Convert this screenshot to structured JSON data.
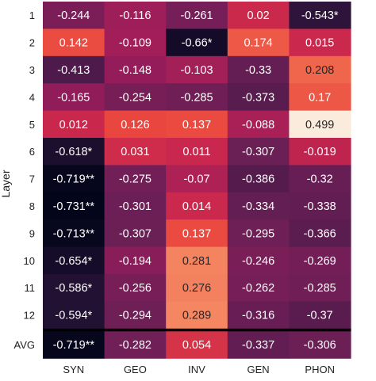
{
  "chart_data": {
    "type": "heatmap",
    "ylabel": "Layer",
    "xlabel": "",
    "columns": [
      "SYN",
      "GEO",
      "INV",
      "GEN",
      "PHON"
    ],
    "rows": [
      "1",
      "2",
      "3",
      "4",
      "5",
      "6",
      "7",
      "8",
      "9",
      "10",
      "11",
      "12",
      "AVG"
    ],
    "values": [
      [
        -0.244,
        -0.116,
        -0.261,
        0.02,
        -0.543
      ],
      [
        0.142,
        -0.109,
        -0.66,
        0.174,
        0.015
      ],
      [
        -0.413,
        -0.148,
        -0.103,
        -0.33,
        0.208
      ],
      [
        -0.165,
        -0.254,
        -0.285,
        -0.373,
        0.17
      ],
      [
        0.012,
        0.126,
        0.137,
        -0.088,
        0.499
      ],
      [
        -0.618,
        0.031,
        0.011,
        -0.307,
        -0.019
      ],
      [
        -0.719,
        -0.275,
        -0.07,
        -0.386,
        -0.32
      ],
      [
        -0.731,
        -0.301,
        0.014,
        -0.334,
        -0.338
      ],
      [
        -0.713,
        -0.307,
        0.137,
        -0.295,
        -0.366
      ],
      [
        -0.654,
        -0.194,
        0.281,
        -0.246,
        -0.269
      ],
      [
        -0.586,
        -0.256,
        0.276,
        -0.262,
        -0.285
      ],
      [
        -0.594,
        -0.294,
        0.289,
        -0.316,
        -0.37
      ],
      [
        -0.719,
        -0.282,
        0.054,
        -0.337,
        -0.306
      ]
    ],
    "labels": [
      [
        "-0.244",
        "-0.116",
        "-0.261",
        "0.02",
        "-0.543*"
      ],
      [
        "0.142",
        "-0.109",
        "-0.66*",
        "0.174",
        "0.015"
      ],
      [
        "-0.413",
        "-0.148",
        "-0.103",
        "-0.33",
        "0.208"
      ],
      [
        "-0.165",
        "-0.254",
        "-0.285",
        "-0.373",
        "0.17"
      ],
      [
        "0.012",
        "0.126",
        "0.137",
        "-0.088",
        "0.499"
      ],
      [
        "-0.618*",
        "0.031",
        "0.011",
        "-0.307",
        "-0.019"
      ],
      [
        "-0.719**",
        "-0.275",
        "-0.07",
        "-0.386",
        "-0.32"
      ],
      [
        "-0.731**",
        "-0.301",
        "0.014",
        "-0.334",
        "-0.338"
      ],
      [
        "-0.713**",
        "-0.307",
        "0.137",
        "-0.295",
        "-0.366"
      ],
      [
        "-0.654*",
        "-0.194",
        "0.281",
        "-0.246",
        "-0.269"
      ],
      [
        "-0.586*",
        "-0.256",
        "0.276",
        "-0.262",
        "-0.285"
      ],
      [
        "-0.594*",
        "-0.294",
        "0.289",
        "-0.316",
        "-0.37"
      ],
      [
        "-0.719**",
        "-0.282",
        "0.054",
        "-0.337",
        "-0.306"
      ]
    ],
    "color_range": [
      -0.731,
      0.499
    ],
    "colormap": "rocket",
    "separator_before_row": "AVG"
  }
}
